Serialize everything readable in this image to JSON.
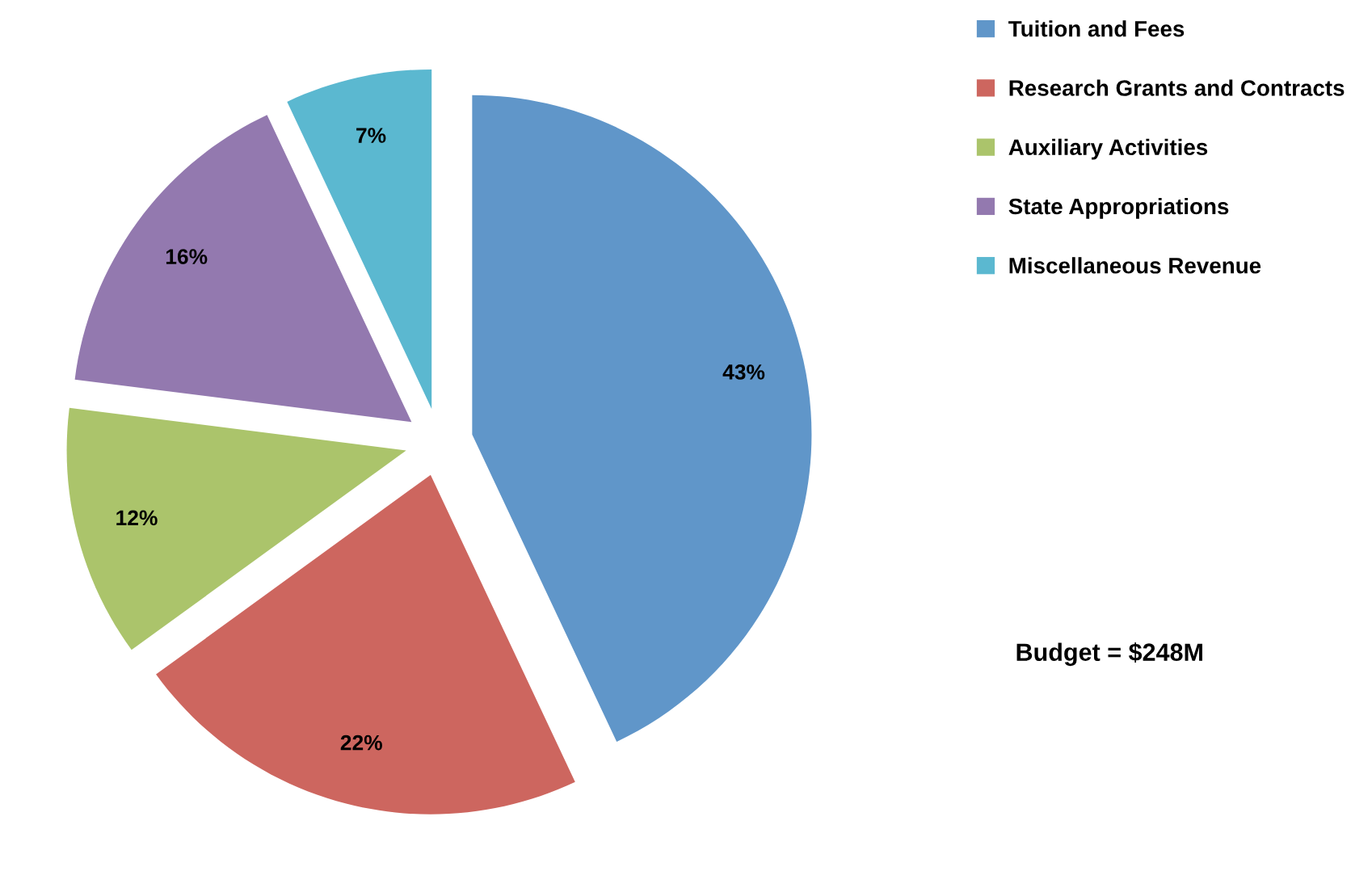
{
  "chart_data": {
    "type": "pie",
    "categories": [
      "Tuition and Fees",
      "Research Grants and Contracts",
      "Auxiliary Activities",
      "State Appropriations",
      "Miscellaneous Revenue"
    ],
    "values": [
      43,
      22,
      12,
      16,
      7
    ],
    "colors": [
      "#6096c9",
      "#cd665f",
      "#abc46b",
      "#9379af",
      "#5bb8d0"
    ],
    "value_labels": [
      "43%",
      "22%",
      "12%",
      "16%",
      "7%"
    ],
    "legend": "top right",
    "annotations": [
      "Budget = $248M"
    ]
  }
}
